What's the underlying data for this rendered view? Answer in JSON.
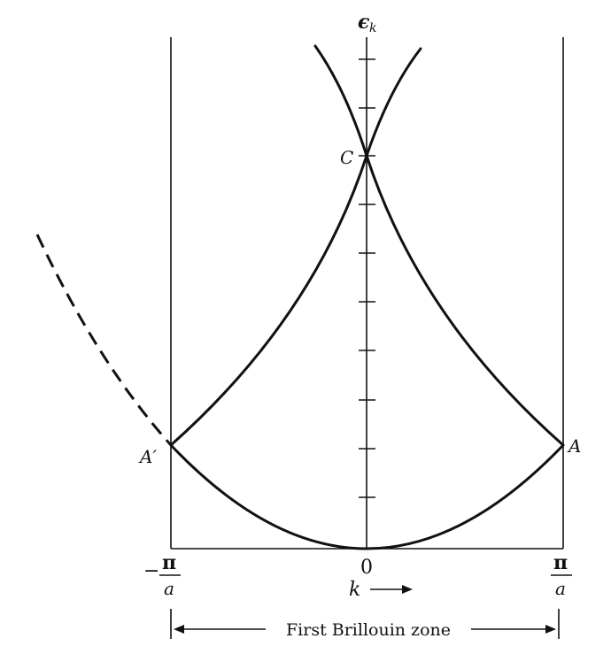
{
  "figure": {
    "axis_label_energy": "ϵ",
    "axis_label_energy_sub": "k",
    "point_C": "C",
    "point_A": "A",
    "point_A_prime": "A′",
    "tick_left_sign": "−",
    "tick_left_num": "π",
    "tick_left_den": "a",
    "tick_zero": "0",
    "tick_right_num": "π",
    "tick_right_den": "a",
    "k_label": "k",
    "zone_label": "First Brillouin zone"
  }
}
